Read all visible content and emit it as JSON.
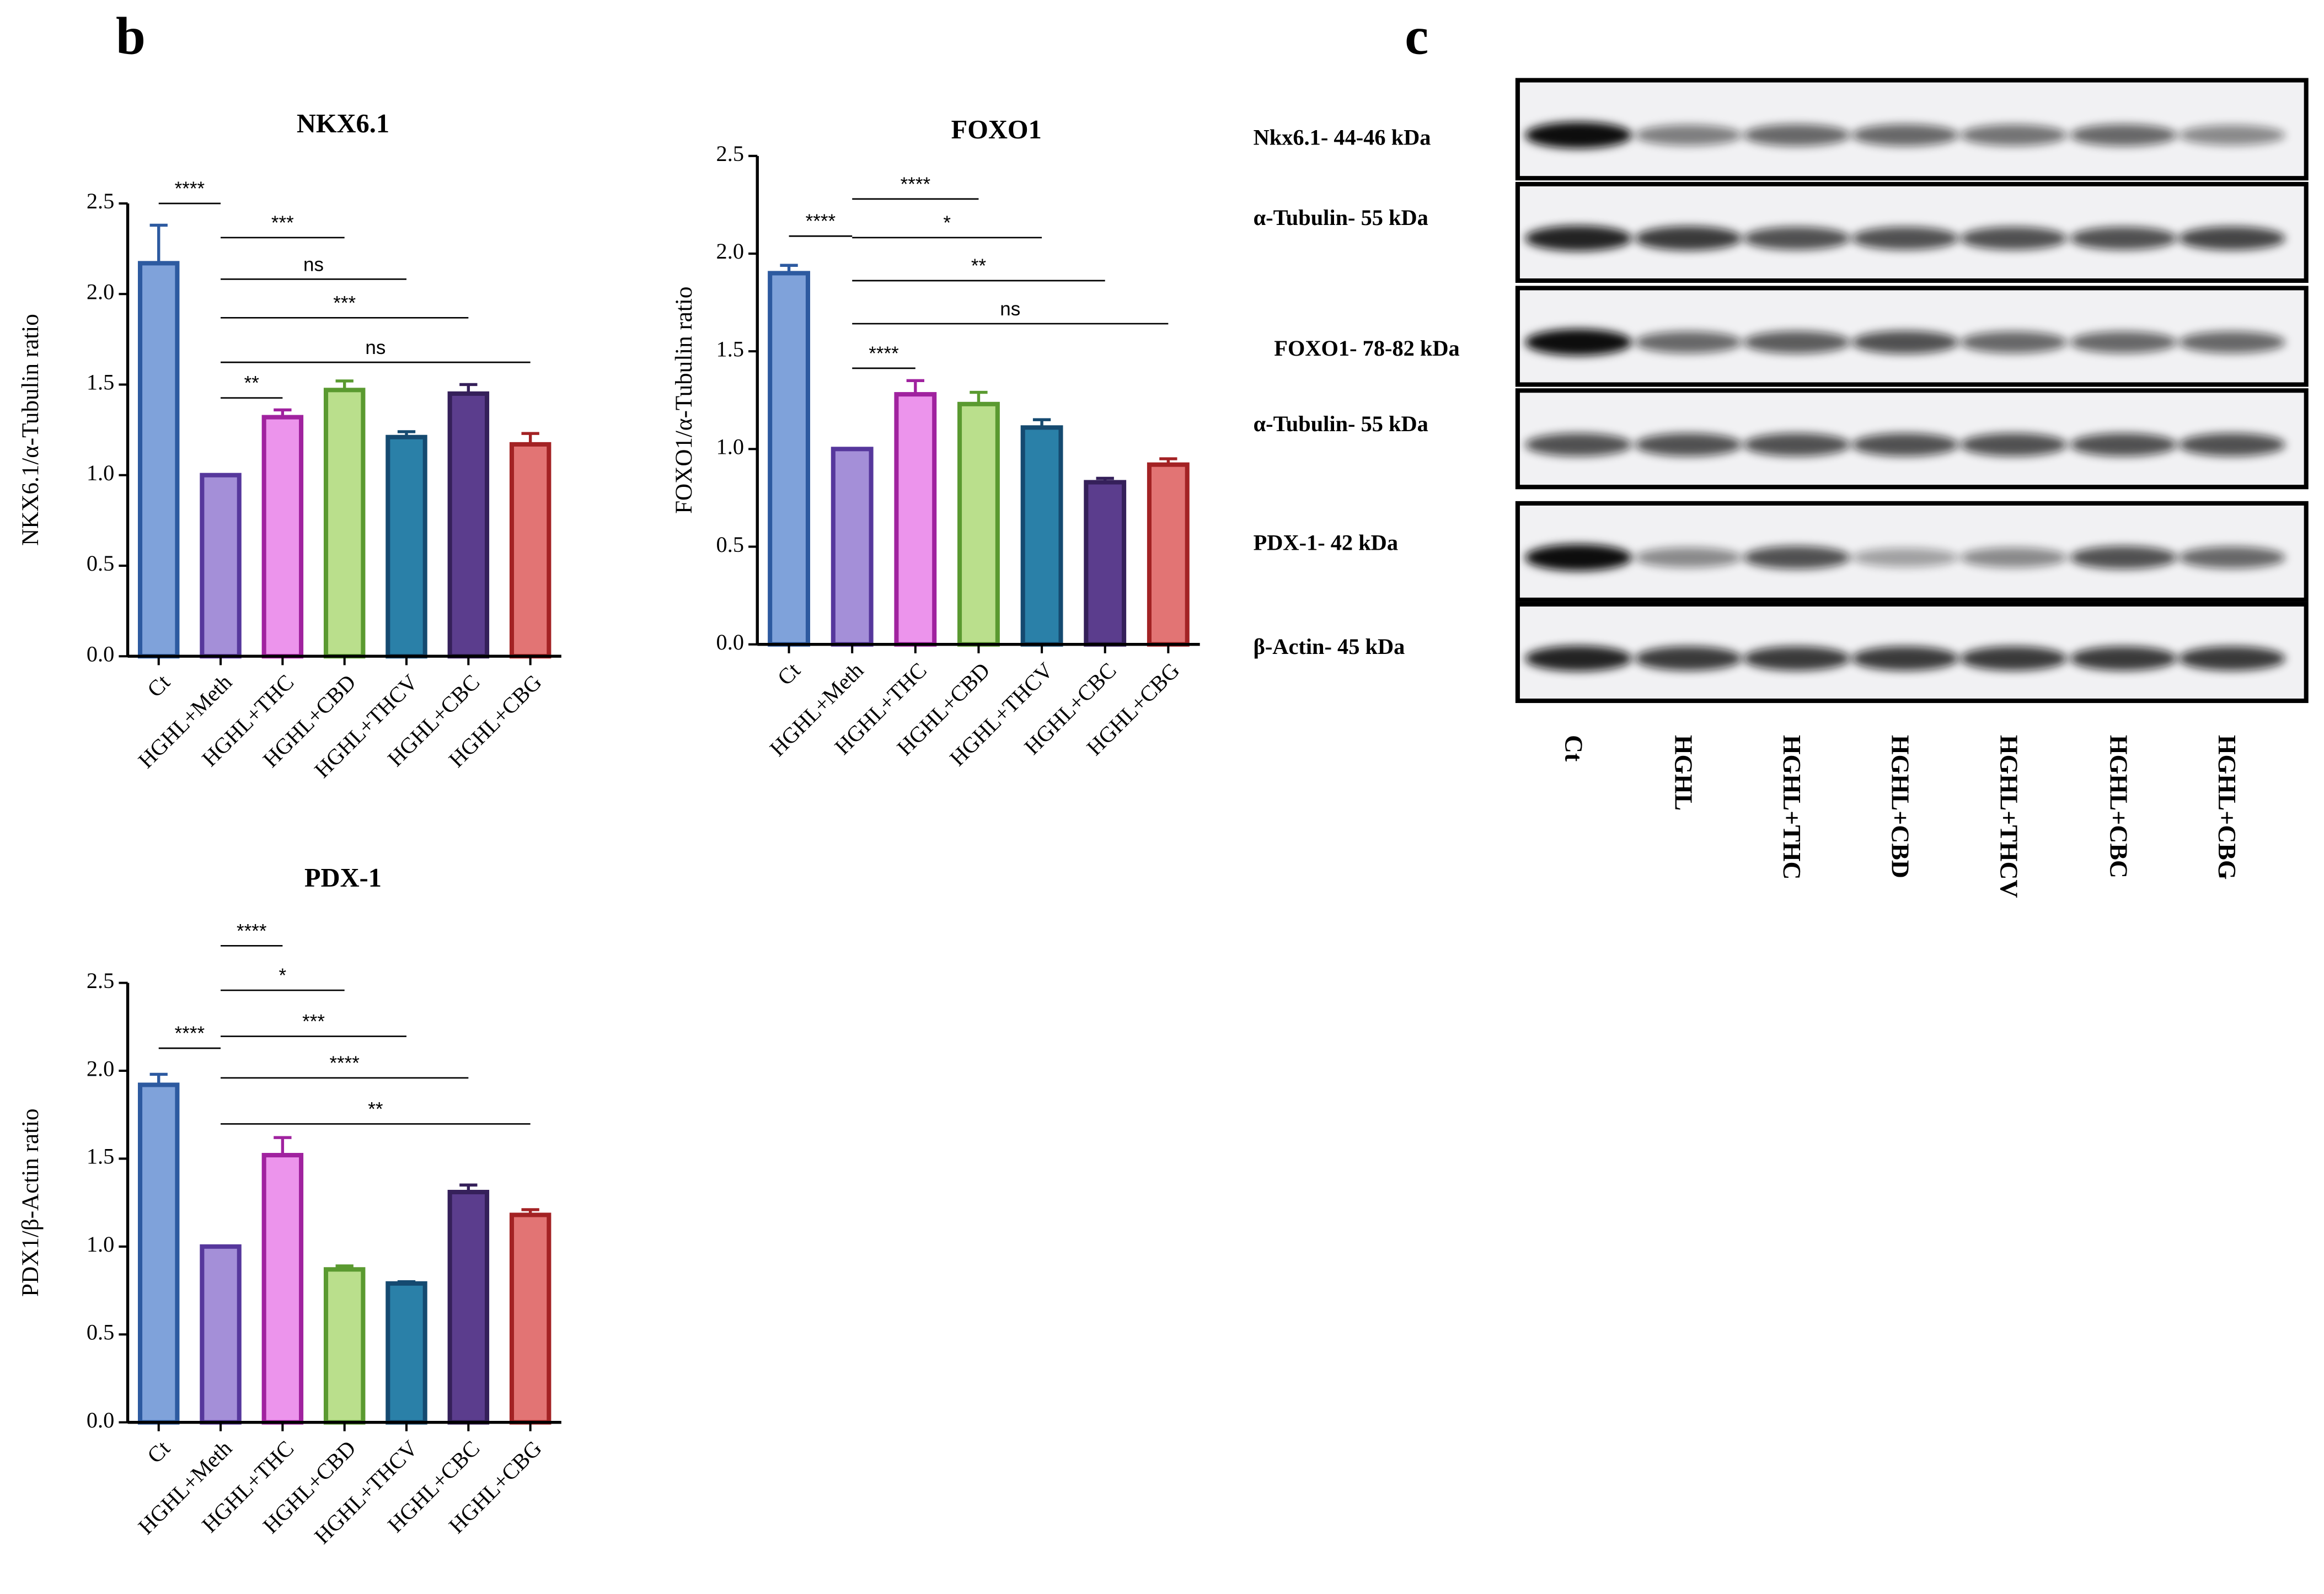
{
  "panel_labels": [
    "b",
    "c"
  ],
  "chart_data": [
    {
      "type": "bar",
      "title": "NKX6.1",
      "ylabel": "NKX6.1/α-Tubulin ratio",
      "categories": [
        "Ct",
        "HGHL+Meth",
        "HGHL+THC",
        "HGHL+CBD",
        "HGHL+THCV",
        "HGHL+CBC",
        "HGHL+CBG"
      ],
      "values": [
        2.17,
        1.0,
        1.32,
        1.47,
        1.21,
        1.45,
        1.17
      ],
      "errors": [
        0.21,
        0,
        0.04,
        0.05,
        0.03,
        0.05,
        0.06
      ],
      "colors": [
        "#7fa2da",
        "#a48fd8",
        "#ec94ec",
        "#badf8c",
        "#2a80a8",
        "#5b3d8d",
        "#e27474"
      ],
      "edge_colors": [
        "#2d5aa0",
        "#56379c",
        "#a0229f",
        "#5a9a30",
        "#154a70",
        "#35205a",
        "#a32224"
      ],
      "ylim": [
        0,
        2.5
      ],
      "yticks": [
        {
          "value": 0,
          "label": "0.0"
        },
        0.5,
        {
          "value": 1,
          "label": "1.0"
        },
        1.5,
        {
          "value": 2,
          "label": "2.0"
        },
        2.5
      ],
      "comparisons": [
        {
          "from": "Ct",
          "to": "HGHL+Meth",
          "label": "****"
        },
        {
          "from": "HGHL+Meth",
          "to": "HGHL+CBD",
          "label": "***"
        },
        {
          "from": "HGHL+Meth",
          "to": "HGHL+THCV",
          "label": "ns"
        },
        {
          "from": "HGHL+Meth",
          "to": "HGHL+CBC",
          "label": "***"
        },
        {
          "from": "HGHL+Meth",
          "to": "HGHL+CBG",
          "label": "ns"
        },
        {
          "from": "HGHL+Meth",
          "to": "HGHL+THC",
          "label": "**"
        }
      ]
    },
    {
      "type": "bar",
      "title": "FOXO1",
      "ylabel": "FOXO1/α-Tubulin ratio",
      "categories": [
        "Ct",
        "HGHL+Meth",
        "HGHL+THC",
        "HGHL+CBD",
        "HGHL+THCV",
        "HGHL+CBC",
        "HGHL+CBG"
      ],
      "values": [
        1.9,
        1.0,
        1.28,
        1.23,
        1.11,
        0.83,
        0.92
      ],
      "errors": [
        0.04,
        0,
        0.07,
        0.06,
        0.04,
        0.02,
        0.03
      ],
      "colors": [
        "#7fa2da",
        "#a48fd8",
        "#ec94ec",
        "#badf8c",
        "#2a80a8",
        "#5b3d8d",
        "#e27474"
      ],
      "edge_colors": [
        "#2d5aa0",
        "#56379c",
        "#a0229f",
        "#5a9a30",
        "#154a70",
        "#35205a",
        "#a32224"
      ],
      "ylim": [
        0,
        2.5
      ],
      "yticks": [
        {
          "value": 0,
          "label": "0.0"
        },
        0.5,
        {
          "value": 1,
          "label": "1.0"
        },
        1.5,
        {
          "value": 2,
          "label": "2.0"
        },
        2.5
      ],
      "comparisons": [
        {
          "from": "HGHL+Meth",
          "to": "HGHL+CBD",
          "label": "****"
        },
        {
          "from": "HGHL+Meth",
          "to": "HGHL+THCV",
          "label": "*"
        },
        {
          "from": "HGHL+Meth",
          "to": "HGHL+CBC",
          "label": "**"
        },
        {
          "from": "HGHL+Meth",
          "to": "HGHL+CBG",
          "label": "ns"
        },
        {
          "from": "Ct",
          "to": "HGHL+Meth",
          "label": "****"
        },
        {
          "from": "HGHL+Meth",
          "to": "HGHL+THC",
          "label": "****"
        }
      ]
    },
    {
      "type": "bar",
      "title": "PDX-1",
      "ylabel": "PDX1/β-Actin ratio",
      "categories": [
        "Ct",
        "HGHL+Meth",
        "HGHL+THC",
        "HGHL+CBD",
        "HGHL+THCV",
        "HGHL+CBC",
        "HGHL+CBG"
      ],
      "values": [
        1.92,
        1.0,
        1.52,
        0.87,
        0.79,
        1.31,
        1.18
      ],
      "errors": [
        0.06,
        0,
        0.1,
        0.02,
        0.01,
        0.04,
        0.03
      ],
      "colors": [
        "#7fa2da",
        "#a48fd8",
        "#ec94ec",
        "#badf8c",
        "#2a80a8",
        "#5b3d8d",
        "#e27474"
      ],
      "edge_colors": [
        "#2d5aa0",
        "#56379c",
        "#a0229f",
        "#5a9a30",
        "#154a70",
        "#35205a",
        "#a32224"
      ],
      "ylim": [
        0,
        2.5
      ],
      "yticks": [
        {
          "value": 0,
          "label": "0.0"
        },
        0.5,
        {
          "value": 1,
          "label": "1.0"
        },
        1.5,
        {
          "value": 2,
          "label": "2.0"
        },
        2.5
      ],
      "comparisons": [
        {
          "from": "HGHL+Meth",
          "to": "HGHL+THC",
          "label": "****"
        },
        {
          "from": "HGHL+Meth",
          "to": "HGHL+CBD",
          "label": "*"
        },
        {
          "from": "HGHL+Meth",
          "to": "HGHL+THCV",
          "label": "***"
        },
        {
          "from": "HGHL+Meth",
          "to": "HGHL+CBC",
          "label": "****"
        },
        {
          "from": "HGHL+Meth",
          "to": "HGHL+CBG",
          "label": "**"
        },
        {
          "from": "Ct",
          "to": "HGHL+Meth",
          "label": "****"
        }
      ]
    }
  ],
  "blot": {
    "rows": [
      "Nkx6.1- 44-46 kDa",
      "α-Tubulin- 55 kDa",
      "FOXO1- 78-82 kDa",
      "α-Tubulin- 55 kDa",
      "PDX-1- 42 kDa",
      "β-Actin- 45 kDa"
    ],
    "lanes": [
      "Ct",
      "HGHL",
      "HGHL+THC",
      "HGHL+CBD",
      "HGHL+THCV",
      "HGHL+CBC",
      "HGHL+CBG"
    ]
  }
}
